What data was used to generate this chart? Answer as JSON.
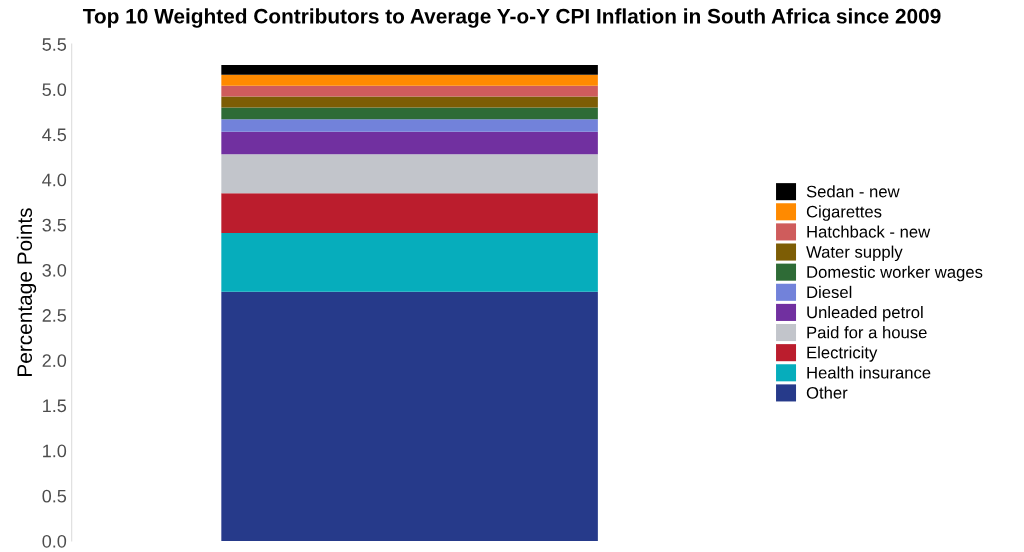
{
  "chart_data": {
    "type": "bar",
    "title": "Top 10 Weighted Contributors to Average Y-o-Y CPI Inflation in South Africa since 2009",
    "ylabel": "Percentage Points",
    "categories": [
      null
    ],
    "stacked": true,
    "ylim": [
      0,
      5.5
    ],
    "yticks": [
      {
        "value": 0,
        "label": "0.0"
      },
      {
        "value": 0.5,
        "label": "0.5"
      },
      {
        "value": 1,
        "label": "1.0"
      },
      {
        "value": 1.5,
        "label": "1.5"
      },
      {
        "value": 2,
        "label": "2.0"
      },
      {
        "value": 2.5,
        "label": "2.5"
      },
      {
        "value": 3,
        "label": "3.0"
      },
      {
        "value": 3.5,
        "label": "3.5"
      },
      {
        "value": 4,
        "label": "4.0"
      },
      {
        "value": 4.5,
        "label": "4.5"
      },
      {
        "value": 5,
        "label": "5.0"
      },
      {
        "value": 5.5,
        "label": "5.5"
      }
    ],
    "grid": false,
    "legend": "right",
    "series": [
      {
        "name": "Other",
        "color": "#263a8a",
        "values": [
          2.76
        ]
      },
      {
        "name": "Health insurance",
        "color": "#06adbc",
        "values": [
          0.65
        ]
      },
      {
        "name": "Electricity",
        "color": "#bb1d2d",
        "values": [
          0.44
        ]
      },
      {
        "name": "Paid for a house",
        "color": "#c2c5cb",
        "values": [
          0.43
        ]
      },
      {
        "name": "Unleaded petrol",
        "color": "#7130a0",
        "values": [
          0.25
        ]
      },
      {
        "name": "Diesel",
        "color": "#7282da",
        "values": [
          0.14
        ]
      },
      {
        "name": "Domestic worker wages",
        "color": "#2e6b36",
        "values": [
          0.13
        ]
      },
      {
        "name": "Water supply",
        "color": "#7d5d05",
        "values": [
          0.12
        ]
      },
      {
        "name": "Hatchback - new",
        "color": "#cf5c5c",
        "values": [
          0.12
        ]
      },
      {
        "name": "Cigarettes",
        "color": "#ff8a00",
        "values": [
          0.12
        ]
      },
      {
        "name": "Sedan - new",
        "color": "#000000",
        "values": [
          0.11
        ]
      }
    ]
  }
}
